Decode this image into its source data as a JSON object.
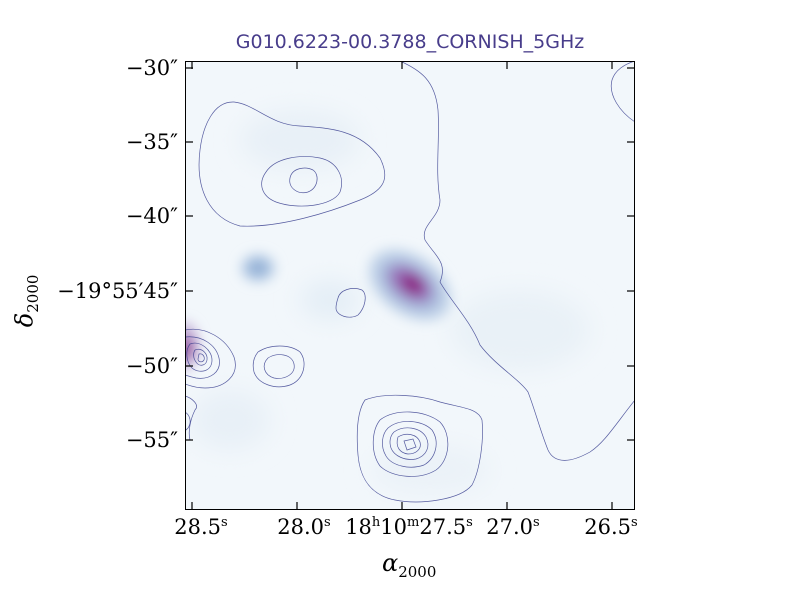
{
  "title": "G010.6223-00.3788_CORNISH_5GHz",
  "y_ticks": [
    "−30″",
    "−35″",
    "−40″",
    "−19°55′45″",
    "−50″",
    "−55″"
  ],
  "x_ticks": [
    {
      "main": "28.5",
      "sup": "s"
    },
    {
      "main": "28.0",
      "sup": "s"
    },
    {
      "main": "18",
      "sup": "h",
      "main2": "10",
      "sup2": "m",
      "main3": "27.5",
      "sup3": "s"
    },
    {
      "main": "27.0",
      "sup": "s"
    },
    {
      "main": "26.5",
      "sup": "s"
    }
  ],
  "xlabel": {
    "symbol": "α",
    "sub": "2000"
  },
  "ylabel": {
    "symbol": "δ",
    "sub": "2000"
  },
  "colors": {
    "title": "#483d8b",
    "contour": "#3a3f8f",
    "background": "#f2f7fb",
    "peak": "#8b0a73"
  }
}
